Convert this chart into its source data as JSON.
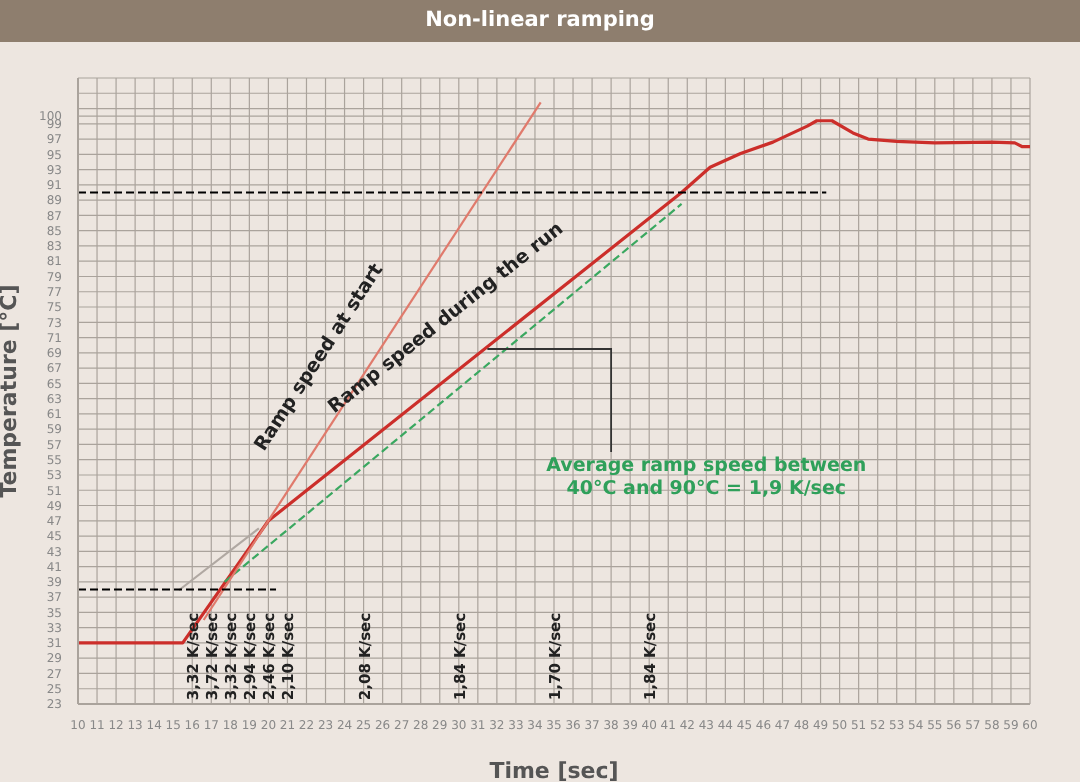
{
  "chart_data": {
    "type": "line",
    "title": "Non-linear ramping",
    "xlabel": "Time [sec]",
    "ylabel": "Temperature [°C]",
    "xlim": [
      10,
      60
    ],
    "xticks": [
      10,
      11,
      12,
      13,
      14,
      15,
      16,
      17,
      18,
      19,
      20,
      21,
      22,
      23,
      24,
      25,
      26,
      27,
      28,
      29,
      30,
      31,
      32,
      33,
      34,
      35,
      36,
      37,
      38,
      39,
      40,
      41,
      42,
      43,
      44,
      45,
      46,
      47,
      48,
      49,
      50,
      51,
      52,
      53,
      54,
      55,
      56,
      57,
      58,
      59,
      60
    ],
    "ylim": [
      23,
      105
    ],
    "yticks": [
      23,
      25,
      27,
      29,
      31,
      33,
      35,
      37,
      39,
      41,
      43,
      45,
      47,
      49,
      51,
      53,
      55,
      57,
      59,
      61,
      63,
      65,
      67,
      69,
      71,
      73,
      75,
      77,
      79,
      81,
      83,
      85,
      87,
      89,
      91,
      93,
      95,
      97,
      99,
      100,
      {
        "value": 101,
        "label": null
      },
      {
        "value": 103,
        "label": null
      },
      {
        "value": 105,
        "label": null
      }
    ],
    "grid": true,
    "marker": "none",
    "series": [
      {
        "color": "#000000",
        "line_style": "dashed",
        "x": [
          10,
          49.3
        ],
        "values": [
          90,
          90
        ]
      },
      {
        "color": "#000000",
        "line_style": "dashed",
        "x": [
          10,
          20.4
        ],
        "values": [
          38,
          38
        ]
      },
      {
        "color": "#b0a8a2",
        "line_style": "solid",
        "x": [
          15.3,
          19.5
        ],
        "values": [
          37.9,
          46
        ]
      },
      {
        "color": "#e07a6c",
        "line_style": "solid",
        "x": [
          16.6,
          34.3
        ],
        "values": [
          34,
          101.8
        ]
      },
      {
        "color": "#3aa860",
        "line_style": "dashed",
        "x": [
          17.7,
          41.7
        ],
        "values": [
          39,
          88.5
        ]
      },
      {
        "color": "#cc2e2a",
        "line_style": "solid",
        "x": [
          10,
          15.5,
          20,
          41.7,
          43.2,
          44.8,
          46.5,
          48.3,
          48.8,
          49.6,
          50.7,
          51.5,
          53,
          55,
          58,
          59.2,
          59.6,
          60
        ],
        "values": [
          31,
          31,
          47,
          90,
          93.3,
          95.1,
          96.6,
          98.7,
          99.4,
          99.4,
          97.8,
          97,
          96.7,
          96.5,
          96.6,
          96.5,
          96,
          96
        ]
      }
    ],
    "annotations": [
      "Ramp speed at start",
      "Ramp speed during the run",
      {
        "text": "Average ramp speed between\n40°C and 90°C = 1,9 K/sec",
        "x": 31.5,
        "y": 69.5
      },
      "3,32 K/sec",
      "3,72 K/sec",
      "3,32 K/sec",
      "2,94 K/sec",
      "2,46 K/sec",
      "2,10 K/sec",
      "2,08 K/sec",
      "1,84 K/sec",
      "1,70 K/sec",
      "1,84 K/sec"
    ]
  }
}
